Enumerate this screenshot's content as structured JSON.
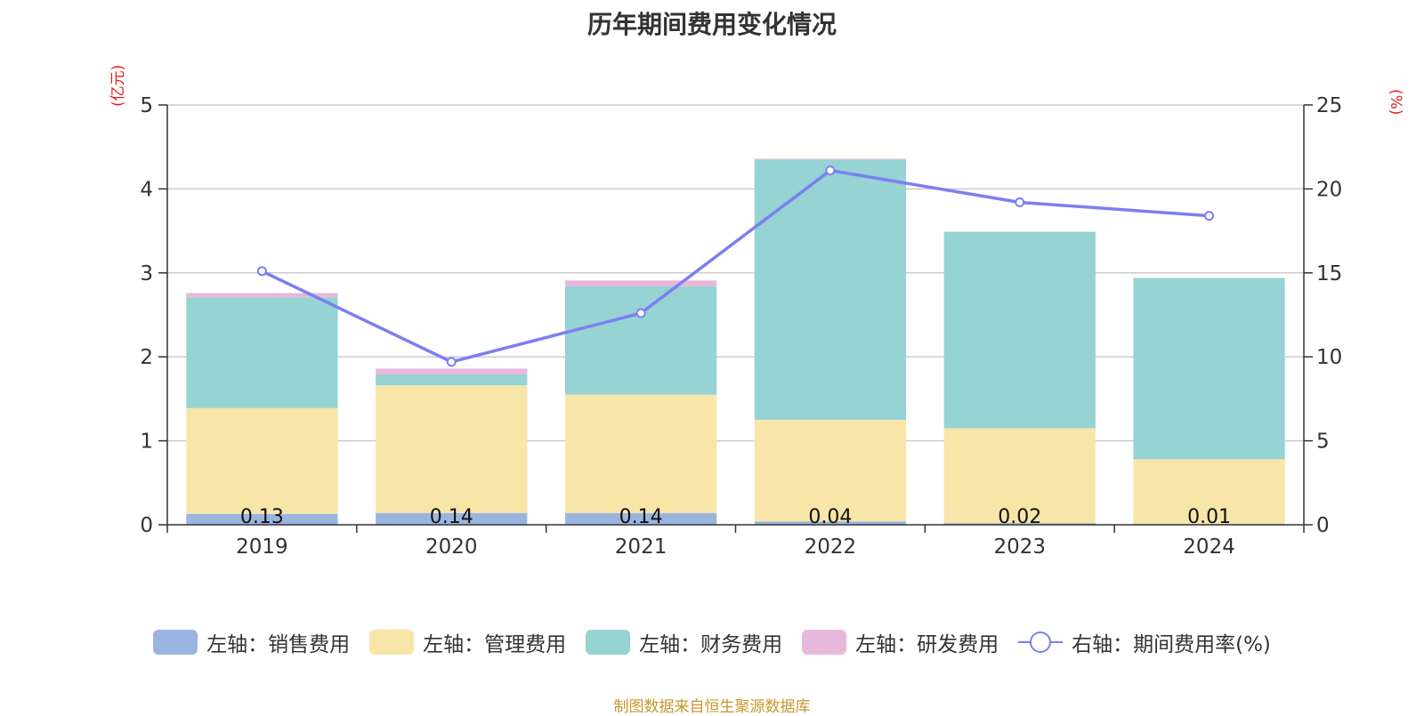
{
  "chart_data": {
    "type": "bar",
    "title": "历年期间费用变化情况",
    "categories": [
      "2019",
      "2020",
      "2021",
      "2022",
      "2023",
      "2024"
    ],
    "stacked": true,
    "series": [
      {
        "name": "左轴：销售费用",
        "axis": "left",
        "color": "#9bb5e1",
        "values": [
          0.13,
          0.14,
          0.14,
          0.04,
          0.02,
          0.01
        ]
      },
      {
        "name": "左轴：管理费用",
        "axis": "left",
        "color": "#f8e6a8",
        "values": [
          1.26,
          1.52,
          1.41,
          1.21,
          1.13,
          0.77
        ]
      },
      {
        "name": "左轴：财务费用",
        "axis": "left",
        "color": "#96d3d3",
        "values": [
          1.32,
          0.13,
          1.29,
          3.1,
          2.34,
          2.16
        ]
      },
      {
        "name": "左轴：研发费用",
        "axis": "left",
        "color": "#e8b8da",
        "values": [
          0.05,
          0.07,
          0.07,
          0.01,
          0.0,
          0.0
        ]
      }
    ],
    "line": {
      "name": "右轴：期间费用率(%)",
      "axis": "right",
      "color": "#7b7ff0",
      "values": [
        15.1,
        9.7,
        12.6,
        21.1,
        19.2,
        18.4
      ]
    },
    "bar_labels": [
      "0.13",
      "0.14",
      "0.14",
      "0.04",
      "0.02",
      "0.01"
    ],
    "left_axis": {
      "unit": "(亿元)",
      "min": 0,
      "max": 5,
      "ticks": [
        "0",
        "1",
        "2",
        "3",
        "4",
        "5"
      ]
    },
    "right_axis": {
      "unit": "(%)",
      "min": 0,
      "max": 25,
      "ticks": [
        "0",
        "5",
        "10",
        "15",
        "20",
        "25"
      ]
    },
    "grid": true,
    "legend_position": "bottom"
  },
  "source_note": "制图数据来自恒生聚源数据库"
}
